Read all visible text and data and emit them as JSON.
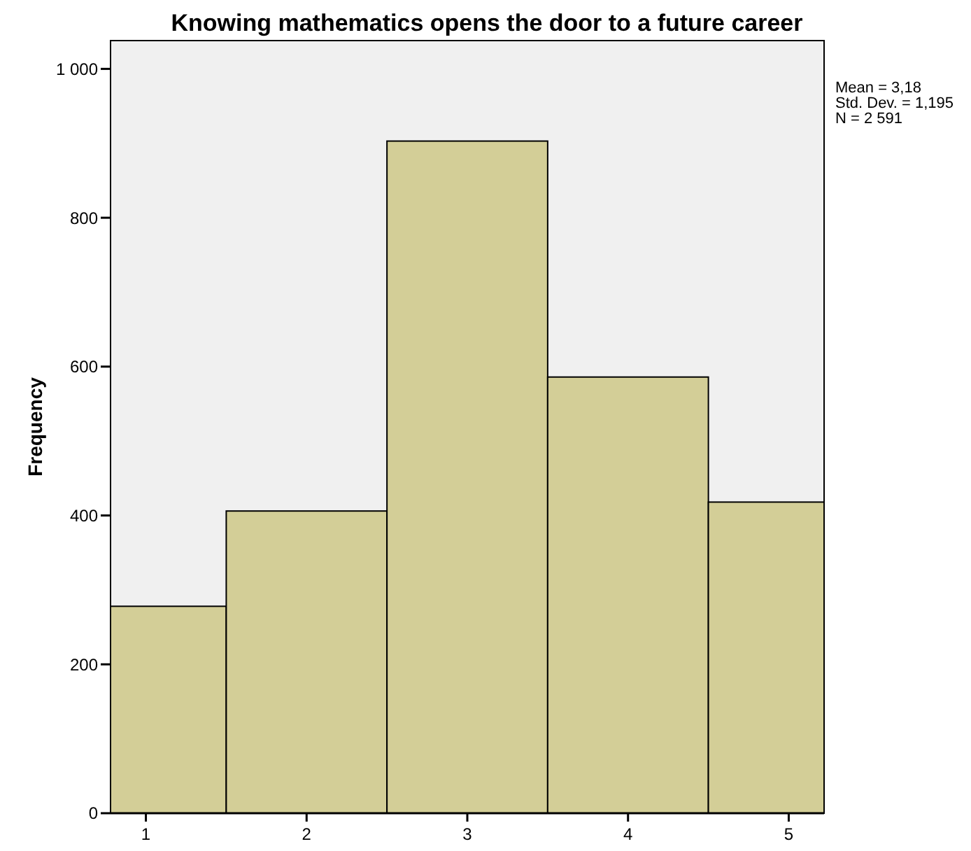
{
  "chart_data": {
    "type": "histogram",
    "title": "Knowing mathematics opens the door to a future career",
    "ylabel": "Frequency",
    "bins": [
      0.78,
      1.5,
      2.5,
      3.5,
      4.5,
      5.22
    ],
    "values": [
      278,
      406,
      903,
      586,
      418
    ],
    "color": "#d3ce97",
    "xlim": [
      0.78,
      5.22
    ],
    "xticks": [
      1,
      2,
      3,
      4,
      5
    ],
    "ylim": [
      0,
      1038
    ],
    "yticks": [
      0,
      200,
      400,
      600,
      800,
      {
        "value": 1000,
        "label": "1 000"
      }
    ],
    "grid": false,
    "annotations": [
      "Mean = 3,18",
      "Std. Dev. = 1,195",
      "N = 2 591"
    ]
  }
}
